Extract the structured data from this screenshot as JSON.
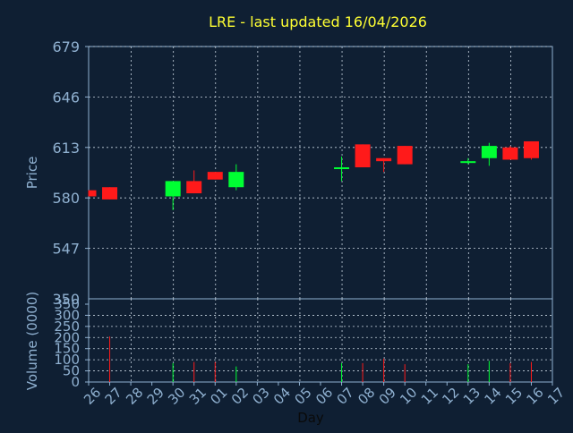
{
  "colors": {
    "background": "#0f1f33",
    "panel": "#0f1f33",
    "axis": "#8fb0d0",
    "grid": "#c8d4e0",
    "title": "#ffff33",
    "label": "#8fb0d0",
    "up": "#00ff33",
    "down": "#ff1a1a"
  },
  "chart_data": {
    "type": "candlestick",
    "title": "LRE - last updated 16/04/2026",
    "xlabel": "Day",
    "price_ylabel": "Price",
    "volume_ylabel": "Volume (0000)",
    "x_ticks": [
      "26",
      "27",
      "28",
      "29",
      "30",
      "31",
      "01",
      "02",
      "03",
      "04",
      "05",
      "06",
      "07",
      "08",
      "09",
      "10",
      "11",
      "12",
      "13",
      "14",
      "15",
      "16",
      "17"
    ],
    "price_ylim": [
      350,
      679
    ],
    "price_yticks": [
      679,
      646,
      613,
      580,
      547
    ],
    "price_axis_floor_label": "350",
    "price_view_min": 514,
    "volume_ylim": [
      0,
      350
    ],
    "volume_yticks": [
      350,
      300,
      250,
      200,
      150,
      100,
      50,
      0
    ],
    "grid": true,
    "candles": [
      {
        "day": "26",
        "open": 585,
        "high": 585,
        "low": 581,
        "close": 581
      },
      {
        "day": "27",
        "open": 587,
        "high": 587,
        "low": 579,
        "close": 579
      },
      {
        "day": "30",
        "open": 581,
        "high": 591,
        "low": 572,
        "close": 591
      },
      {
        "day": "31",
        "open": 591,
        "high": 598,
        "low": 583,
        "close": 583
      },
      {
        "day": "01",
        "open": 597,
        "high": 597,
        "low": 592,
        "close": 592
      },
      {
        "day": "02",
        "open": 587,
        "high": 602,
        "low": 585,
        "close": 597
      },
      {
        "day": "07",
        "open": 599,
        "high": 607,
        "low": 591,
        "close": 600
      },
      {
        "day": "08",
        "open": 615,
        "high": 615,
        "low": 600,
        "close": 600
      },
      {
        "day": "09",
        "open": 606,
        "high": 606,
        "low": 597,
        "close": 604
      },
      {
        "day": "10",
        "open": 614,
        "high": 614,
        "low": 602,
        "close": 602
      },
      {
        "day": "13",
        "open": 603,
        "high": 606,
        "low": 602,
        "close": 604
      },
      {
        "day": "14",
        "open": 606,
        "high": 616,
        "low": 601,
        "close": 614
      },
      {
        "day": "15",
        "open": 613,
        "high": 614,
        "low": 605,
        "close": 605
      },
      {
        "day": "16",
        "open": 617,
        "high": 617,
        "low": 605,
        "close": 606
      }
    ],
    "volume": [
      {
        "day": "27",
        "value": 205,
        "color": "down"
      },
      {
        "day": "30",
        "value": 85,
        "color": "up"
      },
      {
        "day": "31",
        "value": 90,
        "color": "down"
      },
      {
        "day": "01",
        "value": 90,
        "color": "down"
      },
      {
        "day": "02",
        "value": 70,
        "color": "up"
      },
      {
        "day": "07",
        "value": 85,
        "color": "up"
      },
      {
        "day": "08",
        "value": 85,
        "color": "down"
      },
      {
        "day": "09",
        "value": 105,
        "color": "down"
      },
      {
        "day": "10",
        "value": 80,
        "color": "down"
      },
      {
        "day": "13",
        "value": 80,
        "color": "up"
      },
      {
        "day": "14",
        "value": 95,
        "color": "up"
      },
      {
        "day": "15",
        "value": 85,
        "color": "down"
      },
      {
        "day": "16",
        "value": 90,
        "color": "down"
      }
    ]
  }
}
